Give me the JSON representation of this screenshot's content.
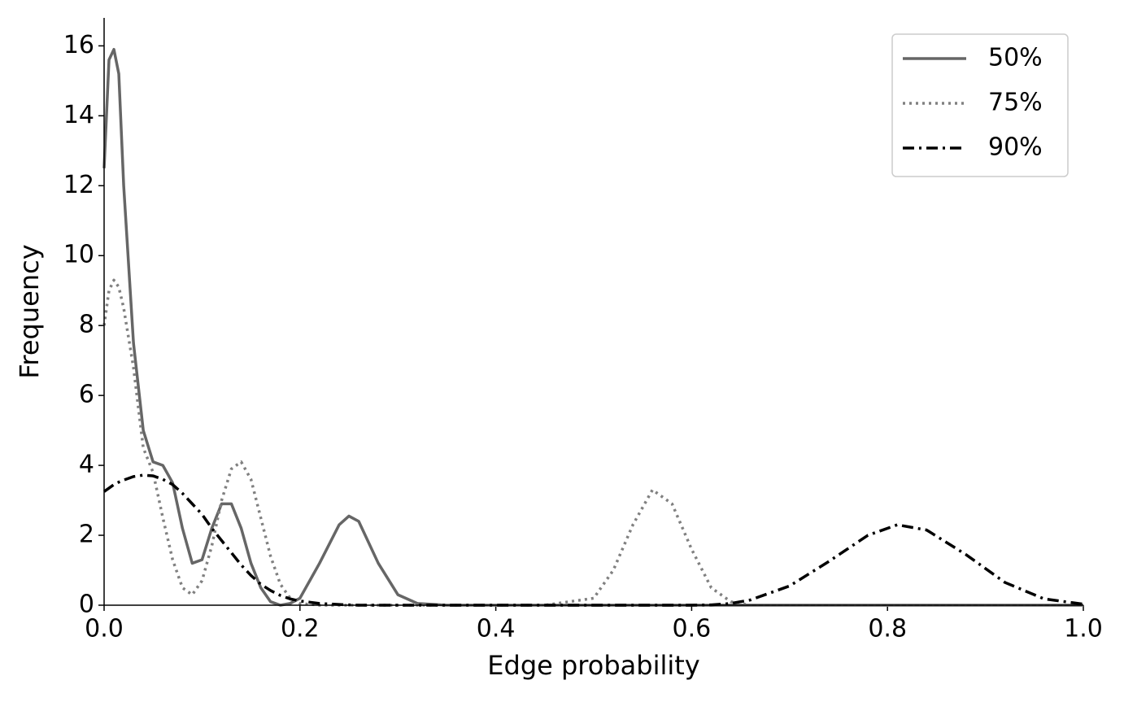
{
  "chart_data": {
    "type": "line",
    "x_label": "Edge probability",
    "y_label": "Frequency",
    "x": [
      0,
      0.005,
      0.01,
      0.015,
      0.02,
      0.03,
      0.04,
      0.05,
      0.06,
      0.07,
      0.08,
      0.09,
      0.1,
      0.11,
      0.12,
      0.13,
      0.14,
      0.15,
      0.16,
      0.17,
      0.18,
      0.19,
      0.2,
      0.22,
      0.24,
      0.25,
      0.26,
      0.28,
      0.3,
      0.32,
      0.35,
      0.4,
      0.45,
      0.5,
      0.52,
      0.54,
      0.56,
      0.58,
      0.6,
      0.62,
      0.64,
      0.66,
      0.7,
      0.74,
      0.78,
      0.81,
      0.84,
      0.88,
      0.92,
      0.96,
      1.0
    ],
    "series": [
      {
        "name": "50%",
        "color": "#666666",
        "style": "solid",
        "values": [
          12.5,
          15.6,
          15.9,
          15.2,
          12.0,
          7.5,
          5.0,
          4.1,
          4.0,
          3.5,
          2.2,
          1.2,
          1.3,
          2.2,
          2.9,
          2.9,
          2.2,
          1.2,
          0.5,
          0.1,
          0.0,
          0.05,
          0.2,
          1.2,
          2.3,
          2.55,
          2.4,
          1.2,
          0.3,
          0.05,
          0,
          0,
          0,
          0,
          0,
          0,
          0,
          0,
          0,
          0,
          0,
          0,
          0,
          0,
          0,
          0,
          0,
          0,
          0,
          0,
          0
        ]
      },
      {
        "name": "75%",
        "color": "#808080",
        "style": "dotted",
        "values": [
          8.0,
          9.0,
          9.3,
          9.1,
          8.5,
          6.8,
          4.5,
          3.8,
          2.5,
          1.3,
          0.5,
          0.3,
          0.7,
          1.7,
          3.0,
          3.9,
          4.1,
          3.6,
          2.5,
          1.4,
          0.6,
          0.2,
          0.05,
          0,
          0,
          0,
          0,
          0,
          0,
          0,
          0,
          0,
          0,
          0.2,
          1.0,
          2.3,
          3.3,
          2.9,
          1.6,
          0.5,
          0.1,
          0,
          0,
          0,
          0,
          0,
          0,
          0,
          0,
          0,
          0
        ]
      },
      {
        "name": "90%",
        "color": "#000000",
        "style": "dashdot",
        "values": [
          3.25,
          3.35,
          3.45,
          3.52,
          3.58,
          3.68,
          3.72,
          3.7,
          3.6,
          3.45,
          3.2,
          2.9,
          2.6,
          2.2,
          1.85,
          1.5,
          1.15,
          0.85,
          0.6,
          0.42,
          0.28,
          0.18,
          0.12,
          0.05,
          0.02,
          0.01,
          0,
          0,
          0,
          0,
          0,
          0,
          0,
          0,
          0,
          0,
          0,
          0,
          0,
          0.01,
          0.05,
          0.15,
          0.55,
          1.25,
          2.0,
          2.3,
          2.15,
          1.45,
          0.65,
          0.18,
          0.03
        ]
      }
    ],
    "xlim": [
      0,
      1
    ],
    "ylim": [
      0,
      16.8
    ],
    "xticks": [
      {
        "value": 0,
        "label": "0.0"
      },
      0.2,
      0.4,
      0.6,
      0.8,
      {
        "value": 1,
        "label": "1.0"
      }
    ],
    "yticks": [
      0,
      2,
      4,
      6,
      8,
      10,
      12,
      14,
      16
    ],
    "grid": false,
    "legend": "upper right"
  }
}
